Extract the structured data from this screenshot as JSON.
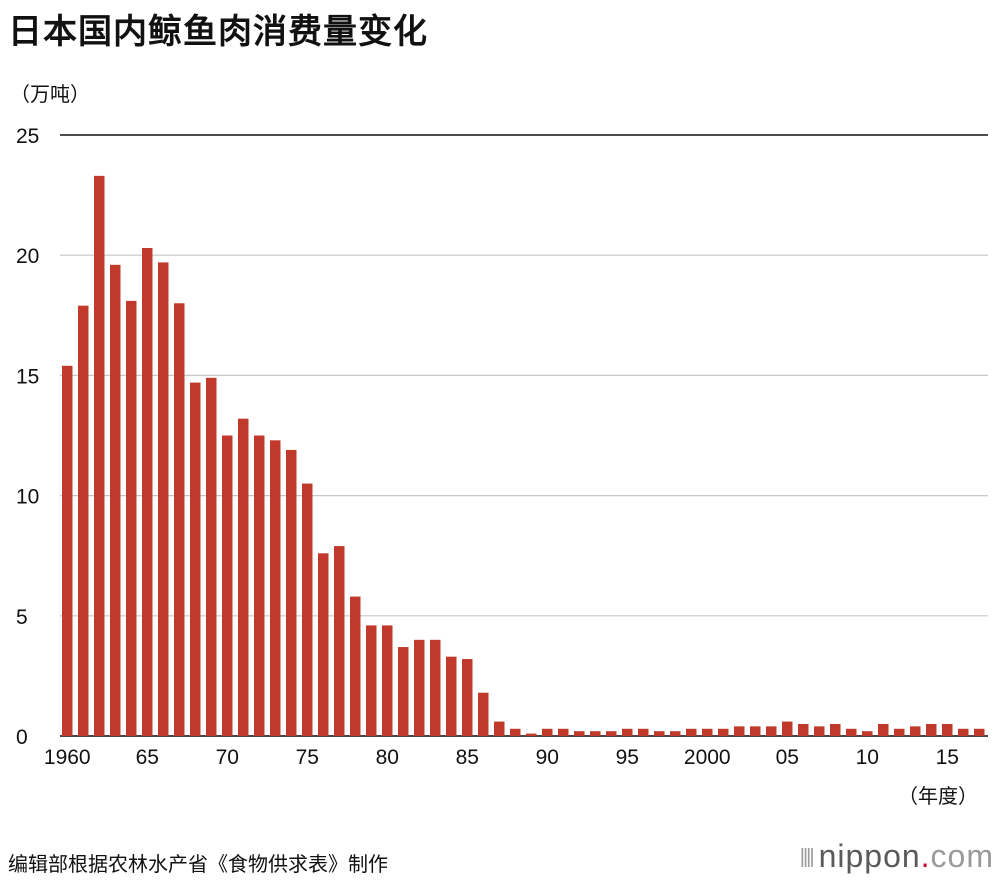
{
  "title": "日本国内鲸鱼肉消费量变化",
  "source": "编辑部根据农林水产省《食物供求表》制作",
  "logo": {
    "text": "nippon",
    "dot": ".",
    "com": "com"
  },
  "chart_data": {
    "type": "bar",
    "ylabel": "（万吨）",
    "xlabel": "（年度）",
    "ylim": [
      0,
      25
    ],
    "yticks": [
      0,
      5,
      10,
      15,
      20,
      25
    ],
    "bar_color": "#c0392b",
    "grid": true,
    "x_tick_labels": [
      {
        "year": 1960,
        "label": "1960"
      },
      {
        "year": 1965,
        "label": "65"
      },
      {
        "year": 1970,
        "label": "70"
      },
      {
        "year": 1975,
        "label": "75"
      },
      {
        "year": 1980,
        "label": "80"
      },
      {
        "year": 1985,
        "label": "85"
      },
      {
        "year": 1990,
        "label": "90"
      },
      {
        "year": 1995,
        "label": "95"
      },
      {
        "year": 2000,
        "label": "2000"
      },
      {
        "year": 2005,
        "label": "05"
      },
      {
        "year": 2010,
        "label": "10"
      },
      {
        "year": 2015,
        "label": "15"
      }
    ],
    "categories": [
      1960,
      1961,
      1962,
      1963,
      1964,
      1965,
      1966,
      1967,
      1968,
      1969,
      1970,
      1971,
      1972,
      1973,
      1974,
      1975,
      1976,
      1977,
      1978,
      1979,
      1980,
      1981,
      1982,
      1983,
      1984,
      1985,
      1986,
      1987,
      1988,
      1989,
      1990,
      1991,
      1992,
      1993,
      1994,
      1995,
      1996,
      1997,
      1998,
      1999,
      2000,
      2001,
      2002,
      2003,
      2004,
      2005,
      2006,
      2007,
      2008,
      2009,
      2010,
      2011,
      2012,
      2013,
      2014,
      2015,
      2016,
      2017
    ],
    "values": [
      15.4,
      17.9,
      23.3,
      19.6,
      18.1,
      20.3,
      19.7,
      18.0,
      14.7,
      14.9,
      12.5,
      13.2,
      12.5,
      12.3,
      11.9,
      10.5,
      7.6,
      7.9,
      5.8,
      4.6,
      4.6,
      3.7,
      4.0,
      4.0,
      3.3,
      3.2,
      1.8,
      0.6,
      0.3,
      0.1,
      0.3,
      0.3,
      0.2,
      0.2,
      0.2,
      0.3,
      0.3,
      0.2,
      0.2,
      0.3,
      0.3,
      0.3,
      0.4,
      0.4,
      0.4,
      0.6,
      0.5,
      0.4,
      0.5,
      0.3,
      0.2,
      0.5,
      0.3,
      0.4,
      0.5,
      0.5,
      0.3,
      0.3
    ]
  }
}
